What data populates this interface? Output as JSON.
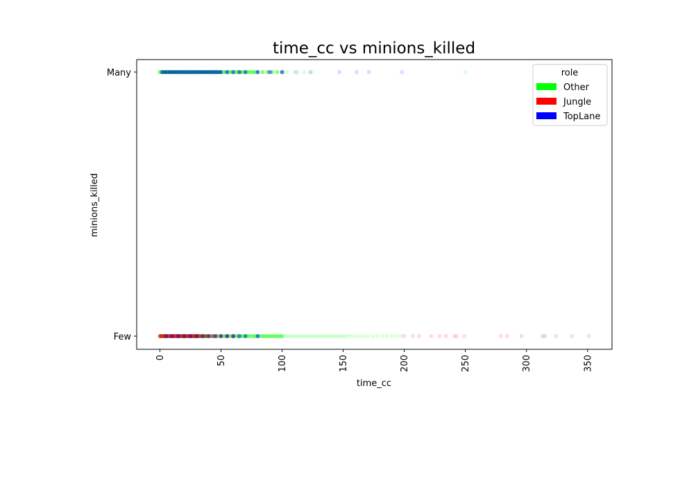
{
  "chart_data": {
    "type": "scatter",
    "title": "time_cc vs minions_killed",
    "xlabel": "time_cc",
    "ylabel": "minions_killed",
    "xlim": [
      -19,
      370
    ],
    "x_ticks": [
      0,
      50,
      100,
      150,
      200,
      250,
      300,
      350
    ],
    "y_categories": [
      "Few",
      "Many"
    ],
    "grid": false,
    "legend": {
      "title": "role",
      "placement": "top-right",
      "entries": [
        {
          "name": "Other",
          "color": "#00ff00"
        },
        {
          "name": "Jungle",
          "color": "#ff0000"
        },
        {
          "name": "TopLane",
          "color": "#0000ff"
        }
      ]
    },
    "series": [
      {
        "name": "Other",
        "color": "#00ff00",
        "points": [
          {
            "y": "Many",
            "x": [
              0,
              1,
              2,
              3,
              4,
              5,
              6,
              7,
              8,
              9,
              10,
              11,
              12,
              13,
              14,
              15,
              16,
              17,
              18,
              19,
              20,
              21,
              22,
              23,
              24,
              25,
              26,
              27,
              28,
              29,
              30,
              31,
              32,
              33,
              34,
              35,
              36,
              37,
              38,
              39,
              40,
              41,
              42,
              43,
              44,
              45,
              46,
              47,
              48,
              49,
              50,
              52,
              54,
              56,
              58,
              60,
              62,
              64,
              66,
              68,
              70,
              72,
              74,
              76,
              78,
              80,
              84,
              88,
              92,
              96,
              100,
              104,
              110,
              118,
              124,
              250
            ]
          },
          {
            "y": "Few",
            "x": [
              0,
              1,
              2,
              3,
              4,
              5,
              6,
              7,
              8,
              9,
              10,
              11,
              12,
              13,
              14,
              15,
              16,
              17,
              18,
              19,
              20,
              21,
              22,
              23,
              24,
              25,
              26,
              27,
              28,
              29,
              30,
              31,
              32,
              33,
              34,
              35,
              36,
              37,
              38,
              39,
              40,
              42,
              44,
              46,
              48,
              50,
              52,
              54,
              56,
              58,
              60,
              62,
              64,
              66,
              68,
              70,
              72,
              74,
              76,
              78,
              80,
              82,
              84,
              86,
              88,
              90,
              92,
              94,
              96,
              98,
              100,
              102,
              104,
              106,
              108,
              110,
              112,
              114,
              116,
              118,
              120,
              122,
              124,
              126,
              128,
              130,
              132,
              134,
              136,
              138,
              140,
              142,
              144,
              146,
              148,
              150,
              152,
              155,
              158,
              161,
              164,
              167,
              170,
              174,
              178,
              182,
              186,
              190,
              194,
              197
            ]
          }
        ]
      },
      {
        "name": "Jungle",
        "color": "#ff0000",
        "points": [
          {
            "y": "Few",
            "x": [
              0,
              1,
              2,
              3,
              4,
              5,
              6,
              7,
              8,
              9,
              10,
              11,
              12,
              13,
              14,
              15,
              16,
              17,
              18,
              19,
              20,
              21,
              22,
              23,
              24,
              25,
              26,
              27,
              28,
              29,
              30,
              31,
              32,
              34,
              36,
              38,
              40,
              43,
              46,
              50,
              55,
              60,
              200,
              207,
              212,
              222,
              229,
              234,
              241,
              243,
              249,
              279,
              284,
              296,
              313,
              324,
              337,
              351
            ]
          }
        ]
      },
      {
        "name": "TopLane",
        "color": "#0000ff",
        "points": [
          {
            "y": "Many",
            "x": [
              2,
              4,
              6,
              8,
              10,
              12,
              14,
              16,
              18,
              20,
              22,
              24,
              26,
              28,
              30,
              32,
              34,
              36,
              38,
              40,
              42,
              44,
              46,
              48,
              50,
              55,
              60,
              65,
              70,
              80,
              90,
              100,
              112,
              123,
              147,
              161,
              171,
              198
            ]
          },
          {
            "y": "Few",
            "x": [
              5,
              10,
              15,
              20,
              25,
              30,
              35,
              40,
              45,
              50,
              55,
              60,
              65,
              70,
              80,
              315
            ]
          }
        ]
      }
    ]
  }
}
